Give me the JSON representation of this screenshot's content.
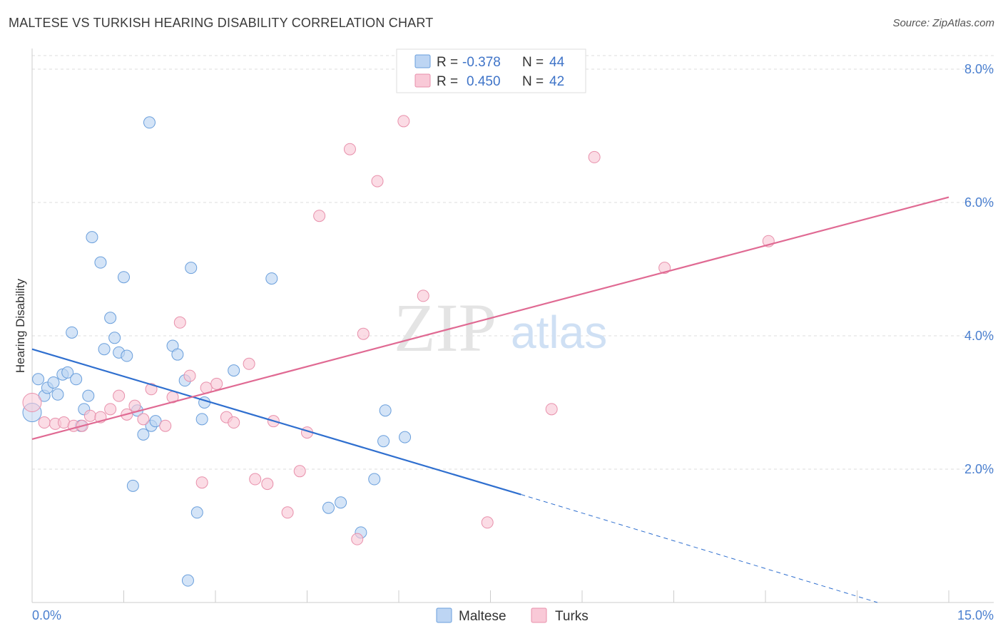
{
  "header": {
    "title": "MALTESE VS TURKISH HEARING DISABILITY CORRELATION CHART",
    "source": "Source: ZipAtlas.com"
  },
  "watermark": {
    "zip": "ZIP",
    "atlas": "atlas"
  },
  "legend_top": {
    "maltese": {
      "r_label": "R =",
      "r_value": "-0.378",
      "n_label": "N =",
      "n_value": "44"
    },
    "turks": {
      "r_label": "R =",
      "r_value": "0.450",
      "n_label": "N =",
      "n_value": "42"
    }
  },
  "legend_bottom": {
    "maltese": "Maltese",
    "turks": "Turks"
  },
  "colors": {
    "maltese_fill": "#bdd5f3",
    "maltese_stroke": "#6a9fdc",
    "maltese_line": "#2f6fcf",
    "turks_fill": "#f9c9d7",
    "turks_stroke": "#e890ab",
    "turks_line": "#e06a93",
    "tick_text": "#4a7fcf",
    "grid": "#dddddd"
  },
  "chart_data": {
    "type": "scatter",
    "title": "MALTESE VS TURKISH HEARING DISABILITY CORRELATION CHART",
    "xlabel": "",
    "ylabel": "Hearing Disability",
    "xlim": [
      0,
      15
    ],
    "ylim": [
      0,
      8.3
    ],
    "x_tick_labels": [
      "0.0%",
      "15.0%"
    ],
    "y_ticks": [
      2,
      4,
      6,
      8
    ],
    "y_tick_labels": [
      "2.0%",
      "4.0%",
      "6.0%",
      "8.0%"
    ],
    "grid": "horizontal dashed",
    "legend_placement": "top-center and bottom-center",
    "series": [
      {
        "name": "Maltese",
        "r": -0.378,
        "n": 44,
        "trend": {
          "x0": 0,
          "y0": 3.8,
          "x1": 8.0,
          "y1": 1.62,
          "dashed_to_x": 15,
          "dashed_to_y": 0
        },
        "points": [
          [
            0.0,
            2.85
          ],
          [
            0.1,
            3.35
          ],
          [
            0.2,
            3.1
          ],
          [
            0.25,
            3.22
          ],
          [
            0.35,
            3.3
          ],
          [
            0.42,
            3.12
          ],
          [
            0.5,
            3.42
          ],
          [
            0.58,
            3.45
          ],
          [
            0.65,
            4.05
          ],
          [
            0.72,
            3.35
          ],
          [
            0.8,
            2.65
          ],
          [
            0.85,
            2.9
          ],
          [
            0.92,
            3.1
          ],
          [
            0.98,
            5.48
          ],
          [
            1.12,
            5.1
          ],
          [
            1.18,
            3.8
          ],
          [
            1.28,
            4.27
          ],
          [
            1.35,
            3.97
          ],
          [
            1.42,
            3.75
          ],
          [
            1.5,
            4.88
          ],
          [
            1.55,
            3.7
          ],
          [
            1.65,
            1.75
          ],
          [
            1.72,
            2.88
          ],
          [
            1.82,
            2.52
          ],
          [
            1.92,
            7.2
          ],
          [
            1.95,
            2.65
          ],
          [
            2.02,
            2.72
          ],
          [
            2.3,
            3.85
          ],
          [
            2.38,
            3.72
          ],
          [
            2.5,
            3.33
          ],
          [
            2.55,
            0.33
          ],
          [
            2.6,
            5.02
          ],
          [
            2.7,
            1.35
          ],
          [
            2.78,
            2.75
          ],
          [
            2.82,
            3.0
          ],
          [
            3.3,
            3.48
          ],
          [
            3.92,
            4.86
          ],
          [
            4.85,
            1.42
          ],
          [
            5.05,
            1.5
          ],
          [
            5.38,
            1.05
          ],
          [
            5.6,
            1.85
          ],
          [
            5.75,
            2.42
          ],
          [
            5.78,
            2.88
          ],
          [
            6.1,
            2.48
          ]
        ]
      },
      {
        "name": "Turks",
        "r": 0.45,
        "n": 42,
        "trend": {
          "x0": 0,
          "y0": 2.45,
          "x1": 15,
          "y1": 6.08
        },
        "points": [
          [
            0.0,
            3.0
          ],
          [
            0.2,
            2.7
          ],
          [
            0.38,
            2.68
          ],
          [
            0.52,
            2.7
          ],
          [
            0.68,
            2.65
          ],
          [
            0.82,
            2.65
          ],
          [
            0.95,
            2.8
          ],
          [
            1.12,
            2.78
          ],
          [
            1.28,
            2.9
          ],
          [
            1.42,
            3.1
          ],
          [
            1.55,
            2.82
          ],
          [
            1.68,
            2.95
          ],
          [
            1.82,
            2.75
          ],
          [
            1.95,
            3.2
          ],
          [
            2.18,
            2.65
          ],
          [
            2.3,
            3.08
          ],
          [
            2.42,
            4.2
          ],
          [
            2.58,
            3.4
          ],
          [
            2.78,
            1.8
          ],
          [
            2.85,
            3.22
          ],
          [
            3.02,
            3.28
          ],
          [
            3.18,
            2.78
          ],
          [
            3.3,
            2.7
          ],
          [
            3.55,
            3.58
          ],
          [
            3.65,
            1.85
          ],
          [
            3.85,
            1.78
          ],
          [
            3.95,
            2.72
          ],
          [
            4.18,
            1.35
          ],
          [
            4.38,
            1.97
          ],
          [
            4.5,
            2.55
          ],
          [
            4.7,
            5.8
          ],
          [
            5.2,
            6.8
          ],
          [
            5.42,
            4.03
          ],
          [
            5.32,
            0.95
          ],
          [
            5.65,
            6.32
          ],
          [
            6.08,
            7.22
          ],
          [
            6.4,
            4.6
          ],
          [
            7.45,
            1.2
          ],
          [
            8.5,
            2.9
          ],
          [
            9.2,
            6.68
          ],
          [
            10.35,
            5.02
          ],
          [
            12.05,
            5.42
          ]
        ]
      }
    ]
  }
}
